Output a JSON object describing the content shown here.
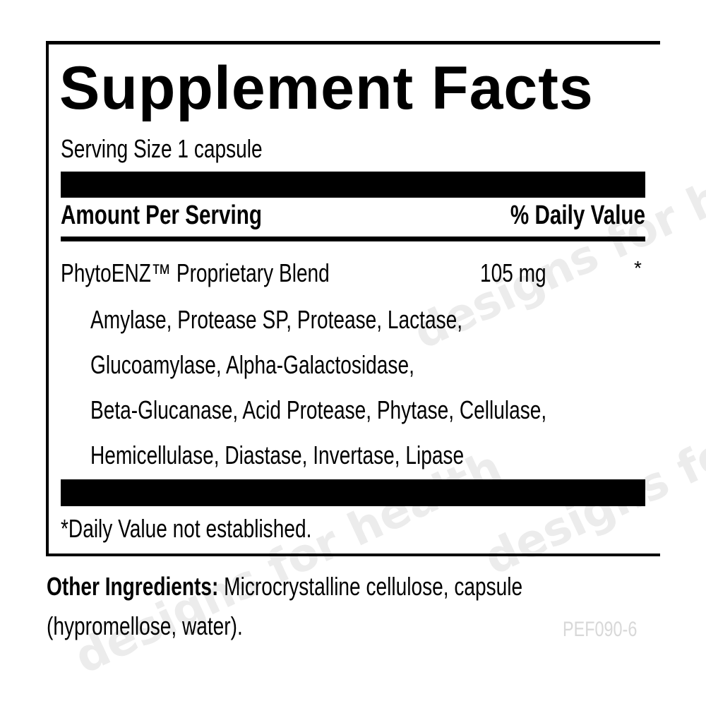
{
  "label": {
    "title": "Supplement Facts",
    "serving_size": "Serving Size 1 capsule",
    "amount_header": "Amount Per Serving",
    "dv_header": "% Daily Value",
    "blend_name": "PhytoENZ™ Proprietary Blend",
    "blend_amount": "105 mg",
    "blend_dv": "*",
    "blend_lines": [
      "Amylase, Protease SP, Protease, Lactase,",
      "Glucoamylase, Alpha-Galactosidase,",
      "Beta-Glucanase, Acid Protease, Phytase, Cellulase,",
      "Hemicellulase, Diastase, Invertase, Lipase"
    ],
    "footnote": "*Daily Value not established."
  },
  "other_ingredients": {
    "label": "Other Ingredients:",
    "line1": " Microcrystalline cellulose, capsule",
    "line2": "(hypromellose, water)."
  },
  "code": "PEF090-6",
  "watermark": "designs for health"
}
